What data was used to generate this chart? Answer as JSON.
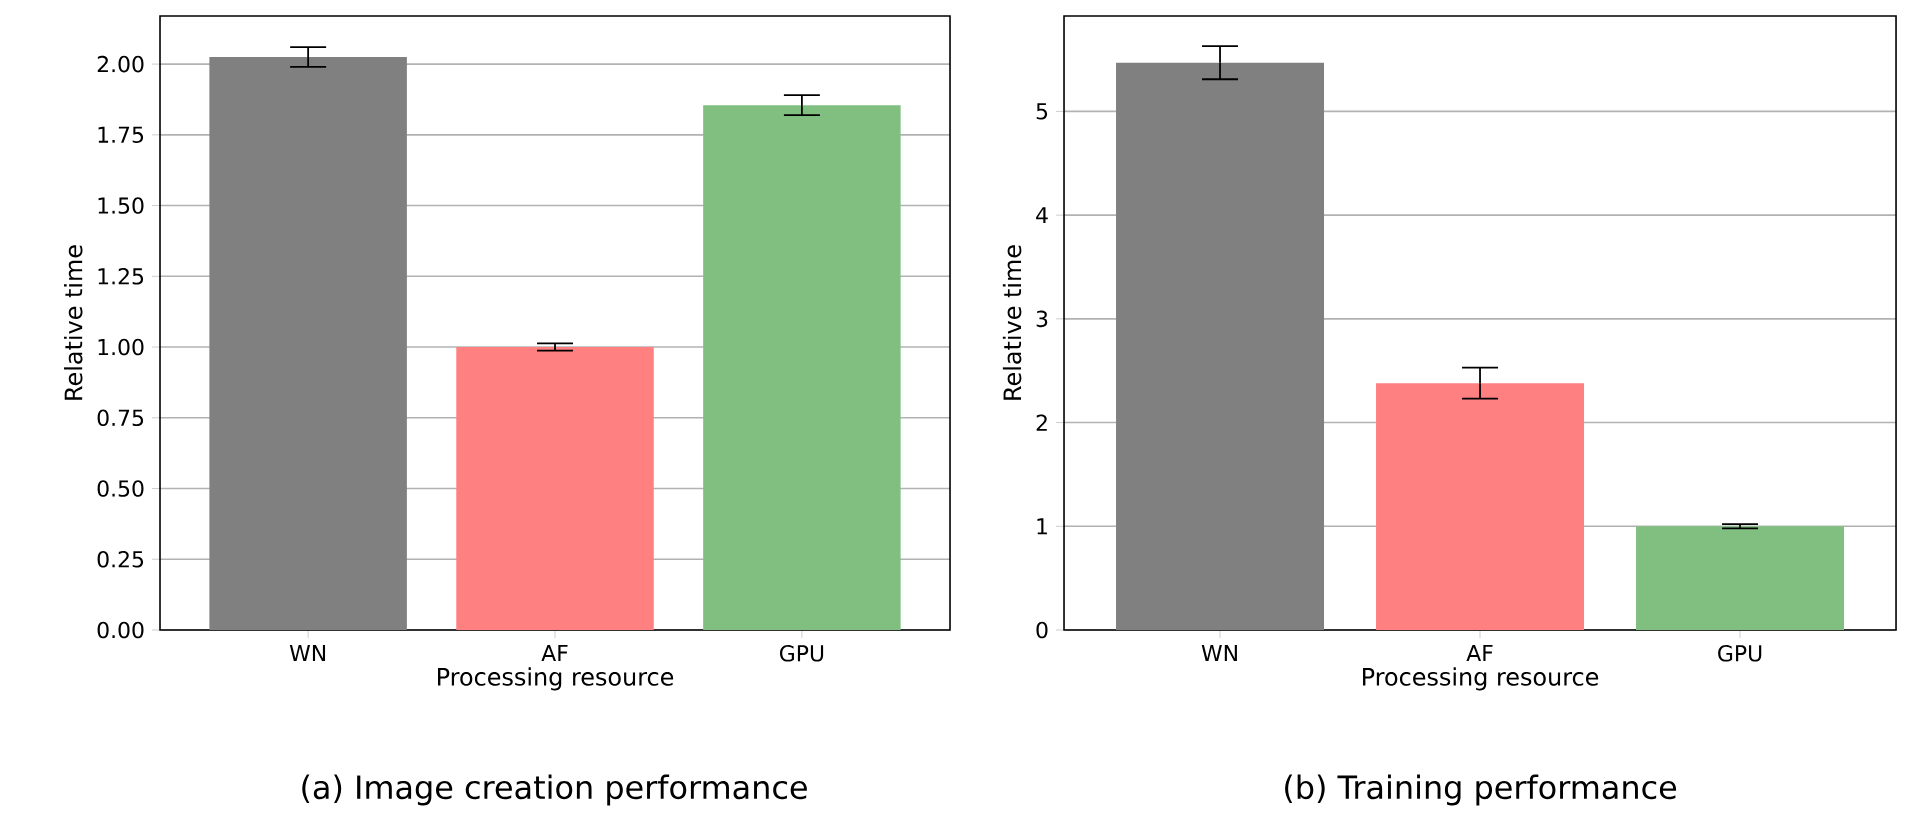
{
  "chart_data": [
    {
      "type": "bar",
      "categories": [
        "WN",
        "AF",
        "GPU"
      ],
      "values": [
        2.025,
        1.0,
        1.855
      ],
      "errors": [
        0.035,
        0.013,
        0.035
      ],
      "colors": [
        "#808080",
        "#ff8080",
        "#80bf80"
      ],
      "xlabel": "Processing resource",
      "ylabel": "Relative time",
      "ylim": [
        0,
        2.17
      ],
      "yticks": [
        {
          "value": 0,
          "label": "0.00"
        },
        {
          "value": 0.25,
          "label": "0.25"
        },
        {
          "value": 0.5,
          "label": "0.50"
        },
        {
          "value": 0.75,
          "label": "0.75"
        },
        {
          "value": 1,
          "label": "1.00"
        },
        {
          "value": 1.25,
          "label": "1.25"
        },
        {
          "value": 1.5,
          "label": "1.50"
        },
        {
          "value": 1.75,
          "label": "1.75"
        },
        {
          "value": 2,
          "label": "2.00"
        }
      ],
      "grid": "y",
      "annotations": [
        "(a) Image creation performance"
      ]
    },
    {
      "type": "bar",
      "categories": [
        "WN",
        "AF",
        "GPU"
      ],
      "values": [
        5.47,
        2.38,
        1.0
      ],
      "errors": [
        0.16,
        0.15,
        0.02
      ],
      "colors": [
        "#808080",
        "#ff8080",
        "#80bf80"
      ],
      "xlabel": "Processing resource",
      "ylabel": "Relative time",
      "ylim": [
        0,
        5.92
      ],
      "yticks": [
        0,
        1,
        2,
        3,
        4,
        5
      ],
      "grid": "y",
      "annotations": [
        "(b) Training performance"
      ]
    }
  ]
}
